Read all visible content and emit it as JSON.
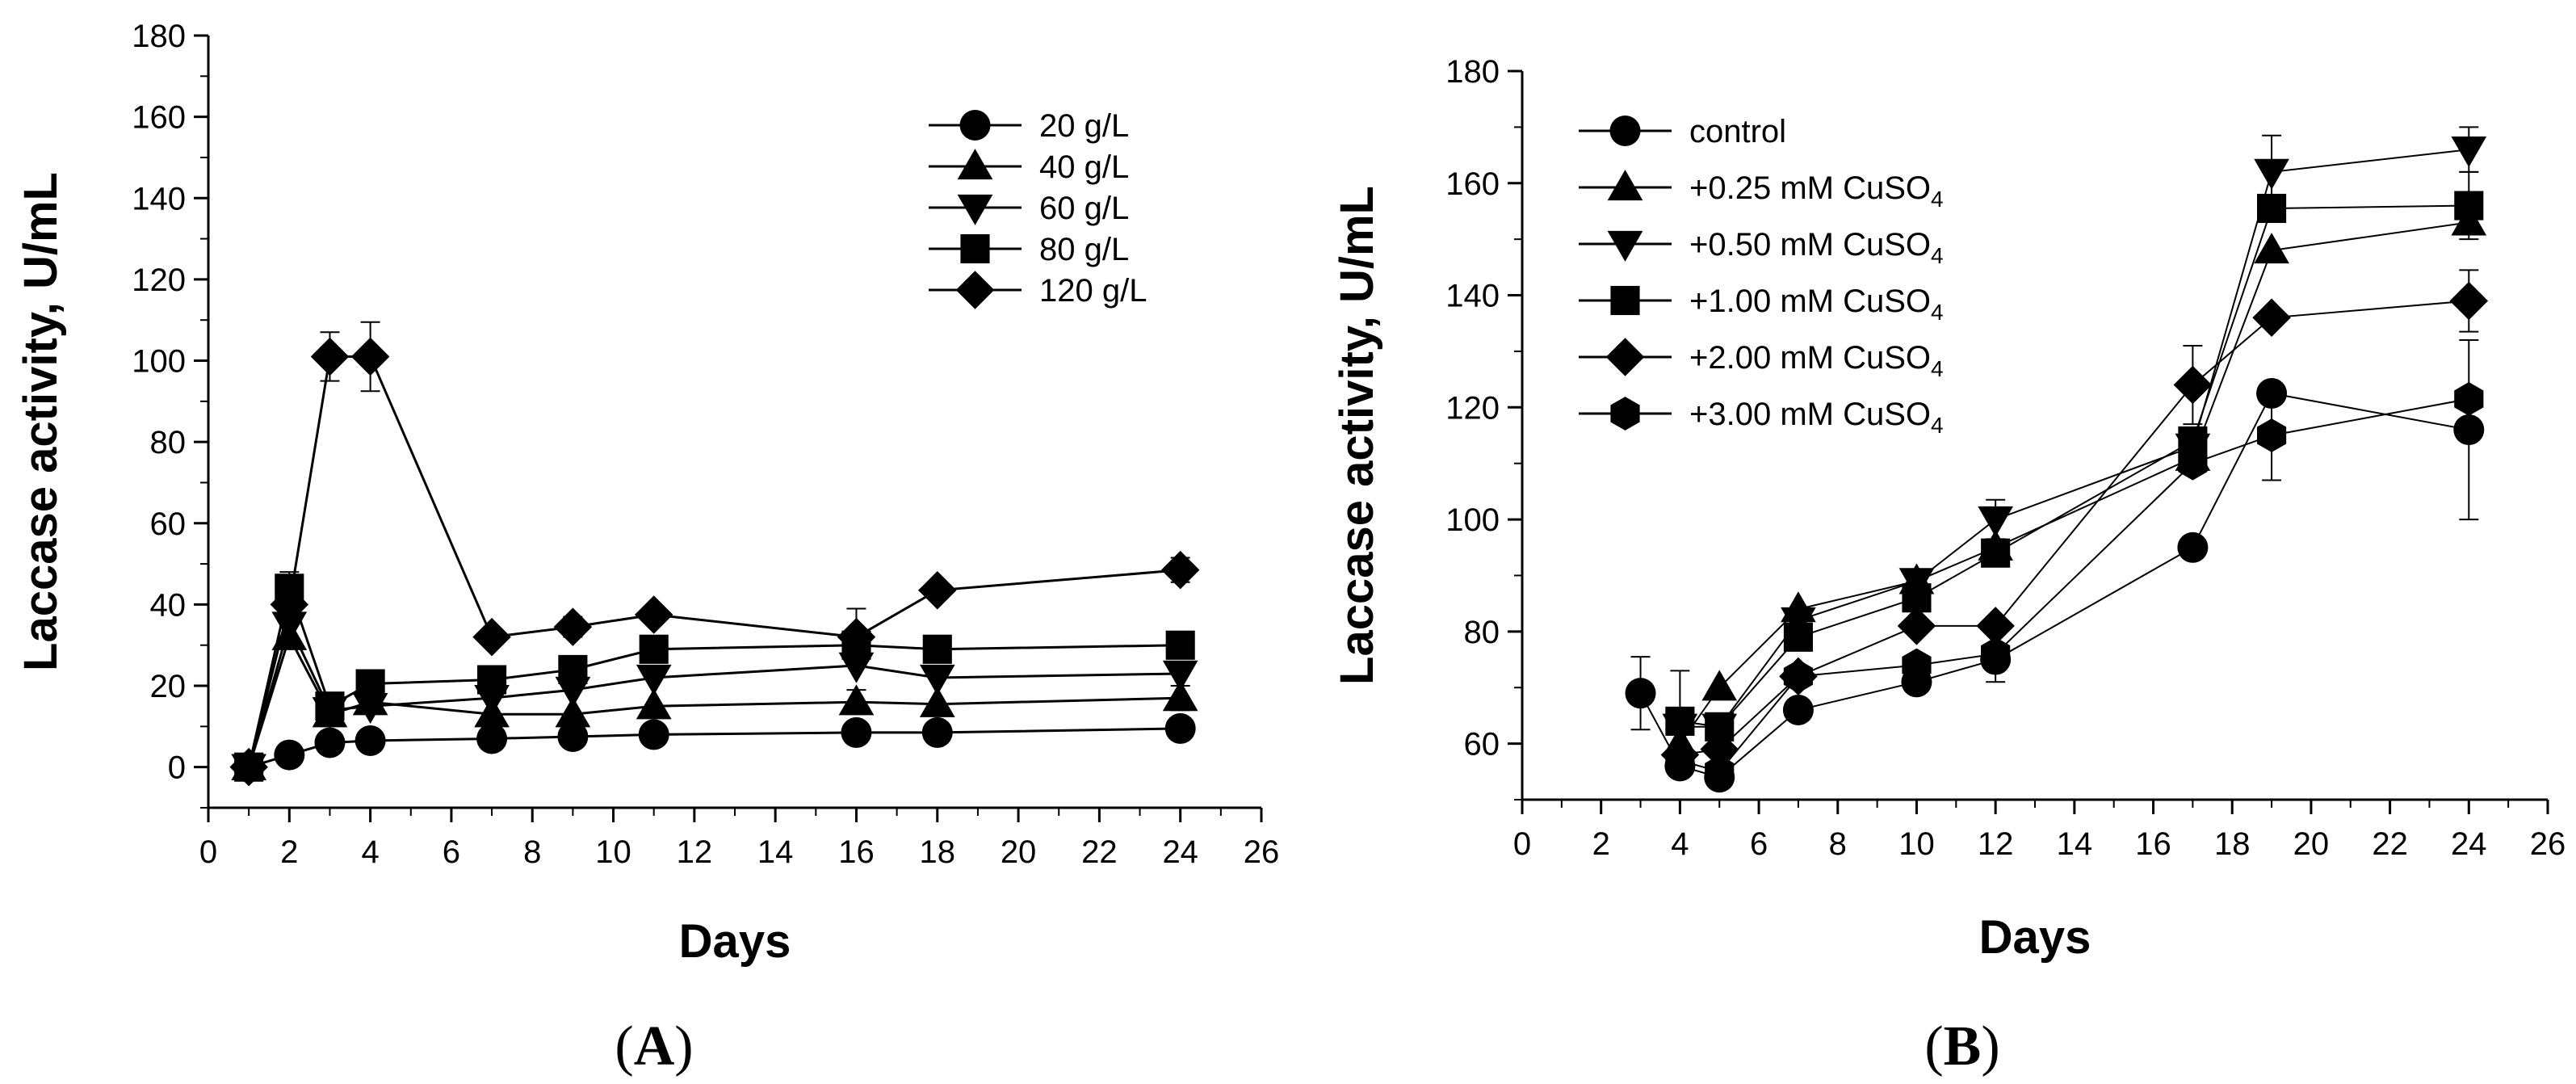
{
  "chart_data": [
    {
      "type": "line",
      "panel_label": "A",
      "xlabel": "Days",
      "ylabel": "Laccase activity, U/mL",
      "xlim": [
        0,
        26
      ],
      "ylim": [
        -10,
        180
      ],
      "xticks": [
        0,
        2,
        4,
        6,
        8,
        10,
        12,
        14,
        16,
        18,
        20,
        22,
        24,
        26
      ],
      "yticks": [
        0,
        20,
        40,
        60,
        80,
        100,
        120,
        140,
        160,
        180
      ],
      "grid": false,
      "legend_position": "top-right",
      "series": [
        {
          "name": "20 g/L",
          "marker": "circle",
          "x": [
            1,
            2,
            3,
            4,
            7,
            9,
            11,
            16,
            18,
            24
          ],
          "y": [
            0,
            3,
            6,
            6.5,
            7,
            7.5,
            8,
            8.5,
            8.5,
            9.5
          ],
          "err": [
            0,
            0,
            0,
            0,
            0,
            0,
            0,
            0,
            0,
            0
          ]
        },
        {
          "name": "40 g/L",
          "marker": "triangle-up",
          "x": [
            1,
            2,
            3,
            4,
            7,
            9,
            11,
            16,
            18,
            24
          ],
          "y": [
            0,
            32,
            13,
            16,
            13,
            13,
            15,
            16,
            15.5,
            17
          ],
          "err": [
            0,
            0,
            0,
            0,
            0,
            0,
            0,
            3,
            0,
            3
          ]
        },
        {
          "name": "60 g/L",
          "marker": "triangle-down",
          "x": [
            1,
            2,
            3,
            4,
            7,
            9,
            11,
            16,
            18,
            24
          ],
          "y": [
            0,
            35,
            14,
            15,
            17,
            19,
            22,
            25,
            22,
            23
          ],
          "err": [
            0,
            0,
            0,
            0,
            0,
            0,
            0,
            0,
            0,
            0
          ]
        },
        {
          "name": "80 g/L",
          "marker": "square",
          "x": [
            1,
            2,
            3,
            4,
            7,
            9,
            11,
            16,
            18,
            24
          ],
          "y": [
            0,
            44,
            15,
            20.5,
            21.5,
            24,
            29,
            30,
            29,
            30
          ],
          "err": [
            0,
            4,
            0,
            0,
            0,
            0,
            0,
            0,
            0,
            0
          ]
        },
        {
          "name": "120 g/L",
          "marker": "diamond",
          "x": [
            1,
            2,
            3,
            4,
            7,
            9,
            11,
            16,
            18,
            24
          ],
          "y": [
            0,
            40,
            101,
            101,
            32,
            34.5,
            37.5,
            32,
            43.5,
            48.5
          ],
          "err": [
            0,
            0,
            6,
            8.5,
            0,
            2.5,
            0,
            7,
            0,
            3
          ]
        }
      ]
    },
    {
      "type": "line",
      "panel_label": "B",
      "xlabel": "Days",
      "ylabel": "Laccase activity, U/mL",
      "xlim": [
        0,
        26
      ],
      "ylim": [
        50,
        180
      ],
      "xticks": [
        0,
        2,
        4,
        6,
        8,
        10,
        12,
        14,
        16,
        18,
        20,
        22,
        24,
        26
      ],
      "yticks": [
        60,
        80,
        100,
        120,
        140,
        160,
        180
      ],
      "grid": false,
      "legend_position": "top-left",
      "series": [
        {
          "name": "control",
          "name_prefix": "control",
          "name_sub": "",
          "marker": "circle",
          "x": [
            3,
            4,
            5,
            7,
            10,
            12,
            17,
            19,
            24
          ],
          "y": [
            69,
            56,
            54,
            66,
            71,
            75,
            95,
            122.5,
            116
          ],
          "err": [
            6.5,
            0,
            0,
            0,
            0,
            0,
            0,
            0,
            16
          ]
        },
        {
          "name": "+0.25 mM CuSO4",
          "name_prefix": "+0.25 mM CuSO",
          "name_sub": "4",
          "marker": "triangle-up",
          "x": [
            4,
            5,
            7,
            10,
            12,
            17,
            19,
            24
          ],
          "y": [
            60,
            70,
            84,
            89,
            95,
            111,
            148,
            153
          ],
          "err": [
            0,
            0,
            0,
            0,
            0,
            0,
            0,
            0
          ]
        },
        {
          "name": "+0.50 mM CuSO4",
          "name_prefix": "+0.50 mM CuSO",
          "name_sub": "4",
          "marker": "triangle-down",
          "x": [
            4,
            5,
            7,
            10,
            12,
            17,
            19,
            24
          ],
          "y": [
            63,
            63,
            82,
            89,
            100,
            113,
            162,
            166
          ],
          "err": [
            0,
            0,
            0,
            0,
            3.5,
            0,
            6.5,
            4
          ]
        },
        {
          "name": "+1.00 mM CuSO4",
          "name_prefix": "+1.00 mM CuSO",
          "name_sub": "4",
          "marker": "square",
          "x": [
            4,
            5,
            7,
            10,
            12,
            17,
            19,
            24
          ],
          "y": [
            64,
            63,
            79,
            86,
            94,
            114,
            155.5,
            156
          ],
          "err": [
            9,
            0,
            0,
            0,
            0,
            0,
            0,
            6
          ]
        },
        {
          "name": "+2.00 mM CuSO4",
          "name_prefix": "+2.00 mM CuSO",
          "name_sub": "4",
          "marker": "diamond",
          "x": [
            4,
            5,
            7,
            10,
            12,
            17,
            19,
            24
          ],
          "y": [
            58,
            59,
            72,
            81,
            81,
            124,
            136,
            139
          ],
          "err": [
            0,
            0,
            0,
            0,
            0,
            7,
            0,
            5.5
          ]
        },
        {
          "name": "+3.00 mM CuSO4",
          "name_prefix": "+3.00 mM CuSO",
          "name_sub": "4",
          "marker": "hexagon",
          "x": [
            4,
            5,
            7,
            10,
            12,
            17,
            19,
            24
          ],
          "y": [
            57,
            55,
            72,
            74,
            76,
            110,
            115,
            121.5
          ],
          "err": [
            0,
            0,
            0,
            0,
            5,
            0,
            8,
            0
          ]
        }
      ]
    }
  ]
}
